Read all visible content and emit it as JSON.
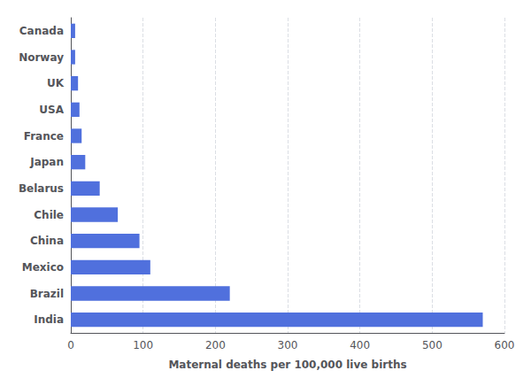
{
  "chart_data": {
    "type": "bar",
    "orientation": "horizontal",
    "categories": [
      "India",
      "Brazil",
      "Mexico",
      "China",
      "Chile",
      "Belarus",
      "Japan",
      "France",
      "USA",
      "UK",
      "Norway",
      "Canada"
    ],
    "values": [
      570,
      220,
      110,
      95,
      65,
      40,
      20,
      15,
      12,
      10,
      6,
      6
    ],
    "xlabel": "Maternal deaths per 100,000 live births",
    "xlim": [
      0,
      600
    ],
    "xticks": [
      0,
      100,
      200,
      300,
      400,
      500,
      600
    ],
    "grid": true
  }
}
